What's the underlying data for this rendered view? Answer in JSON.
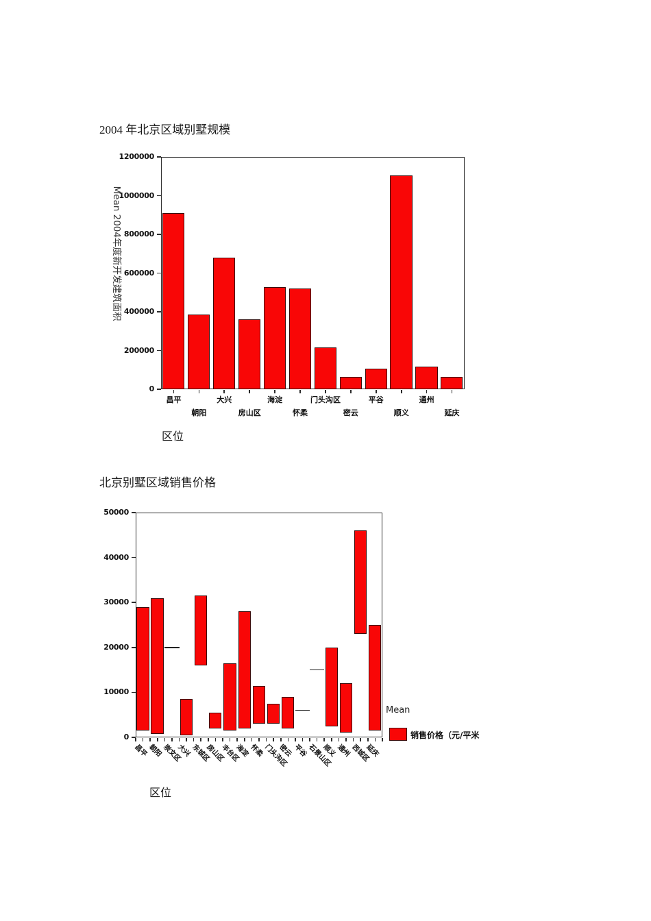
{
  "document": {
    "title1": "2004 年北京区域别墅规模",
    "title2": "北京别墅区域销售价格"
  },
  "colors": {
    "bar_fill": "#f90606",
    "bar_border": "#3a0a0a",
    "axis": "#2b2b2b",
    "text": "#1a1a1a"
  },
  "chart_data": [
    {
      "type": "bar",
      "title": "2004 年北京区域别墅规模",
      "xlabel": "区位",
      "ylabel": "Mean 2004年度新开发建筑面积",
      "ylim": [
        0,
        1200000
      ],
      "yticks": [
        0,
        200000,
        400000,
        600000,
        800000,
        1000000,
        1200000
      ],
      "grid": false,
      "legend_position": "none",
      "categories": [
        "昌平",
        "朝阳",
        "大兴",
        "房山区",
        "海淀",
        "怀柔",
        "门头沟区",
        "密云",
        "平谷",
        "顺义",
        "通州",
        "延庆"
      ],
      "values": [
        910000,
        385000,
        680000,
        360000,
        527000,
        520000,
        215000,
        62000,
        107000,
        1105000,
        118000,
        62000
      ]
    },
    {
      "type": "range_bar",
      "title": "北京别墅区域销售价格",
      "xlabel": "区位",
      "ylabel": "",
      "ylim": [
        0,
        50000
      ],
      "yticks": [
        0,
        10000,
        20000,
        30000,
        40000,
        50000
      ],
      "grid": false,
      "legend_position": "right",
      "legend": {
        "title": "Mean",
        "label": "销售价格（元/平米",
        "swatch_color": "#f90606"
      },
      "categories": [
        "昌平",
        "朝阳",
        "崇文区",
        "大兴",
        "东城区",
        "房山区",
        "丰台区",
        "海淀",
        "怀柔",
        "门头沟区",
        "密云",
        "平谷",
        "石景山区",
        "顺义",
        "通州",
        "西城区",
        "延庆"
      ],
      "items": [
        {
          "category": "昌平",
          "low": 1500,
          "high": 29000
        },
        {
          "category": "朝阳",
          "low": 800,
          "high": 31000
        },
        {
          "category": "崇文区",
          "mean": 20000
        },
        {
          "category": "大兴",
          "low": 500,
          "high": 8500
        },
        {
          "category": "东城区",
          "low": 16000,
          "high": 31500
        },
        {
          "category": "房山区",
          "low": 2000,
          "high": 5500
        },
        {
          "category": "丰台区",
          "low": 1500,
          "high": 16500
        },
        {
          "category": "海淀",
          "low": 2000,
          "high": 28000
        },
        {
          "category": "怀柔",
          "low": 3000,
          "high": 11500
        },
        {
          "category": "门头沟区",
          "low": 3000,
          "high": 7500
        },
        {
          "category": "密云",
          "low": 2000,
          "high": 9000
        },
        {
          "category": "平谷",
          "mean": 6000
        },
        {
          "category": "石景山区",
          "mean": 15000
        },
        {
          "category": "顺义",
          "low": 2500,
          "high": 20000
        },
        {
          "category": "通州",
          "low": 1000,
          "high": 12000
        },
        {
          "category": "西城区",
          "low": 23000,
          "high": 46000
        },
        {
          "category": "延庆",
          "low": 1500,
          "high": 25000
        }
      ]
    }
  ]
}
